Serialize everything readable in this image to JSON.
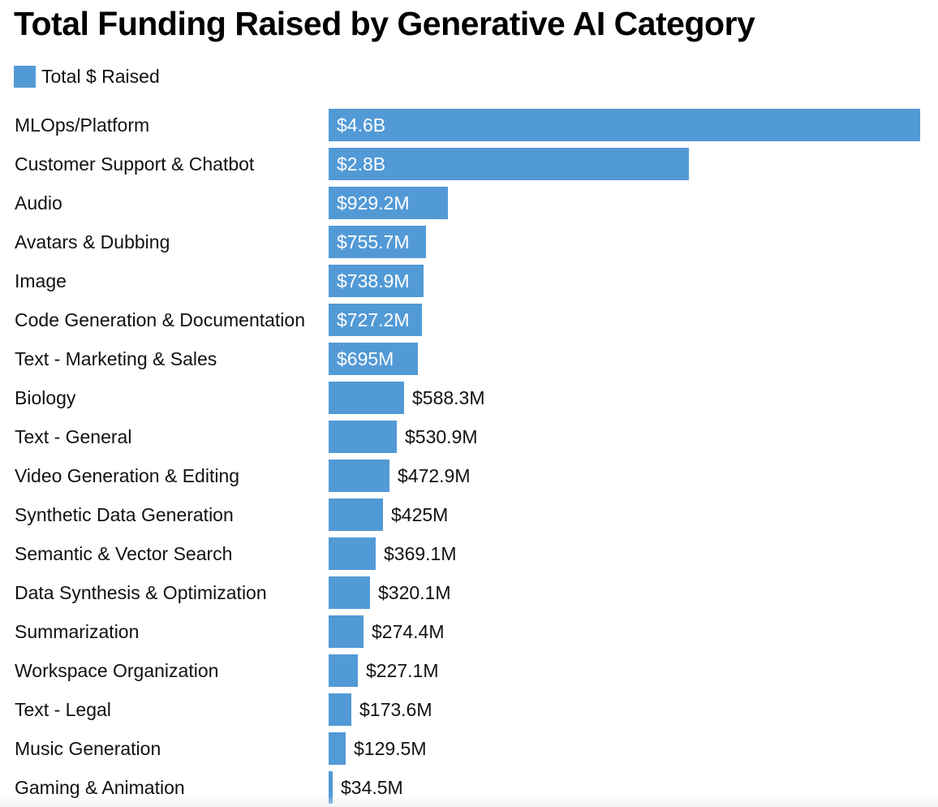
{
  "chart_data": {
    "type": "bar",
    "orientation": "horizontal",
    "title": "Total Funding Raised by Generative AI Category",
    "legend": {
      "placement": "top-left",
      "entries": [
        {
          "label": "Total $ Raised",
          "color": "#529ad6"
        }
      ]
    },
    "series": [
      {
        "name": "Total $ Raised",
        "color": "#529ad6"
      }
    ],
    "grid": false,
    "unit": "USD",
    "xlim": [
      0,
      4600000000
    ],
    "categories": [
      "MLOps/Platform",
      "Customer Support & Chatbot",
      "Audio",
      "Avatars & Dubbing",
      "Image",
      "Code Generation & Documentation",
      "Text - Marketing & Sales",
      "Biology",
      "Text - General",
      "Video Generation & Editing",
      "Synthetic Data Generation",
      "Semantic & Vector Search",
      "Data Synthesis & Optimization",
      "Summarization",
      "Workspace Organization",
      "Text - Legal",
      "Music Generation",
      "Gaming & Animation"
    ],
    "values": [
      4600000000,
      2800000000,
      929200000,
      755700000,
      738900000,
      727200000,
      695000000,
      588300000,
      530900000,
      472900000,
      425000000,
      369100000,
      320100000,
      274400000,
      227100000,
      173600000,
      129500000,
      34500000
    ],
    "data_labels": [
      "$4.6B",
      "$2.8B",
      "$929.2M",
      "$755.7M",
      "$738.9M",
      "$727.2M",
      "$695M",
      "$588.3M",
      "$530.9M",
      "$472.9M",
      "$425M",
      "$369.1M",
      "$320.1M",
      "$274.4M",
      "$227.1M",
      "$173.6M",
      "$129.5M",
      "$34.5M"
    ]
  }
}
